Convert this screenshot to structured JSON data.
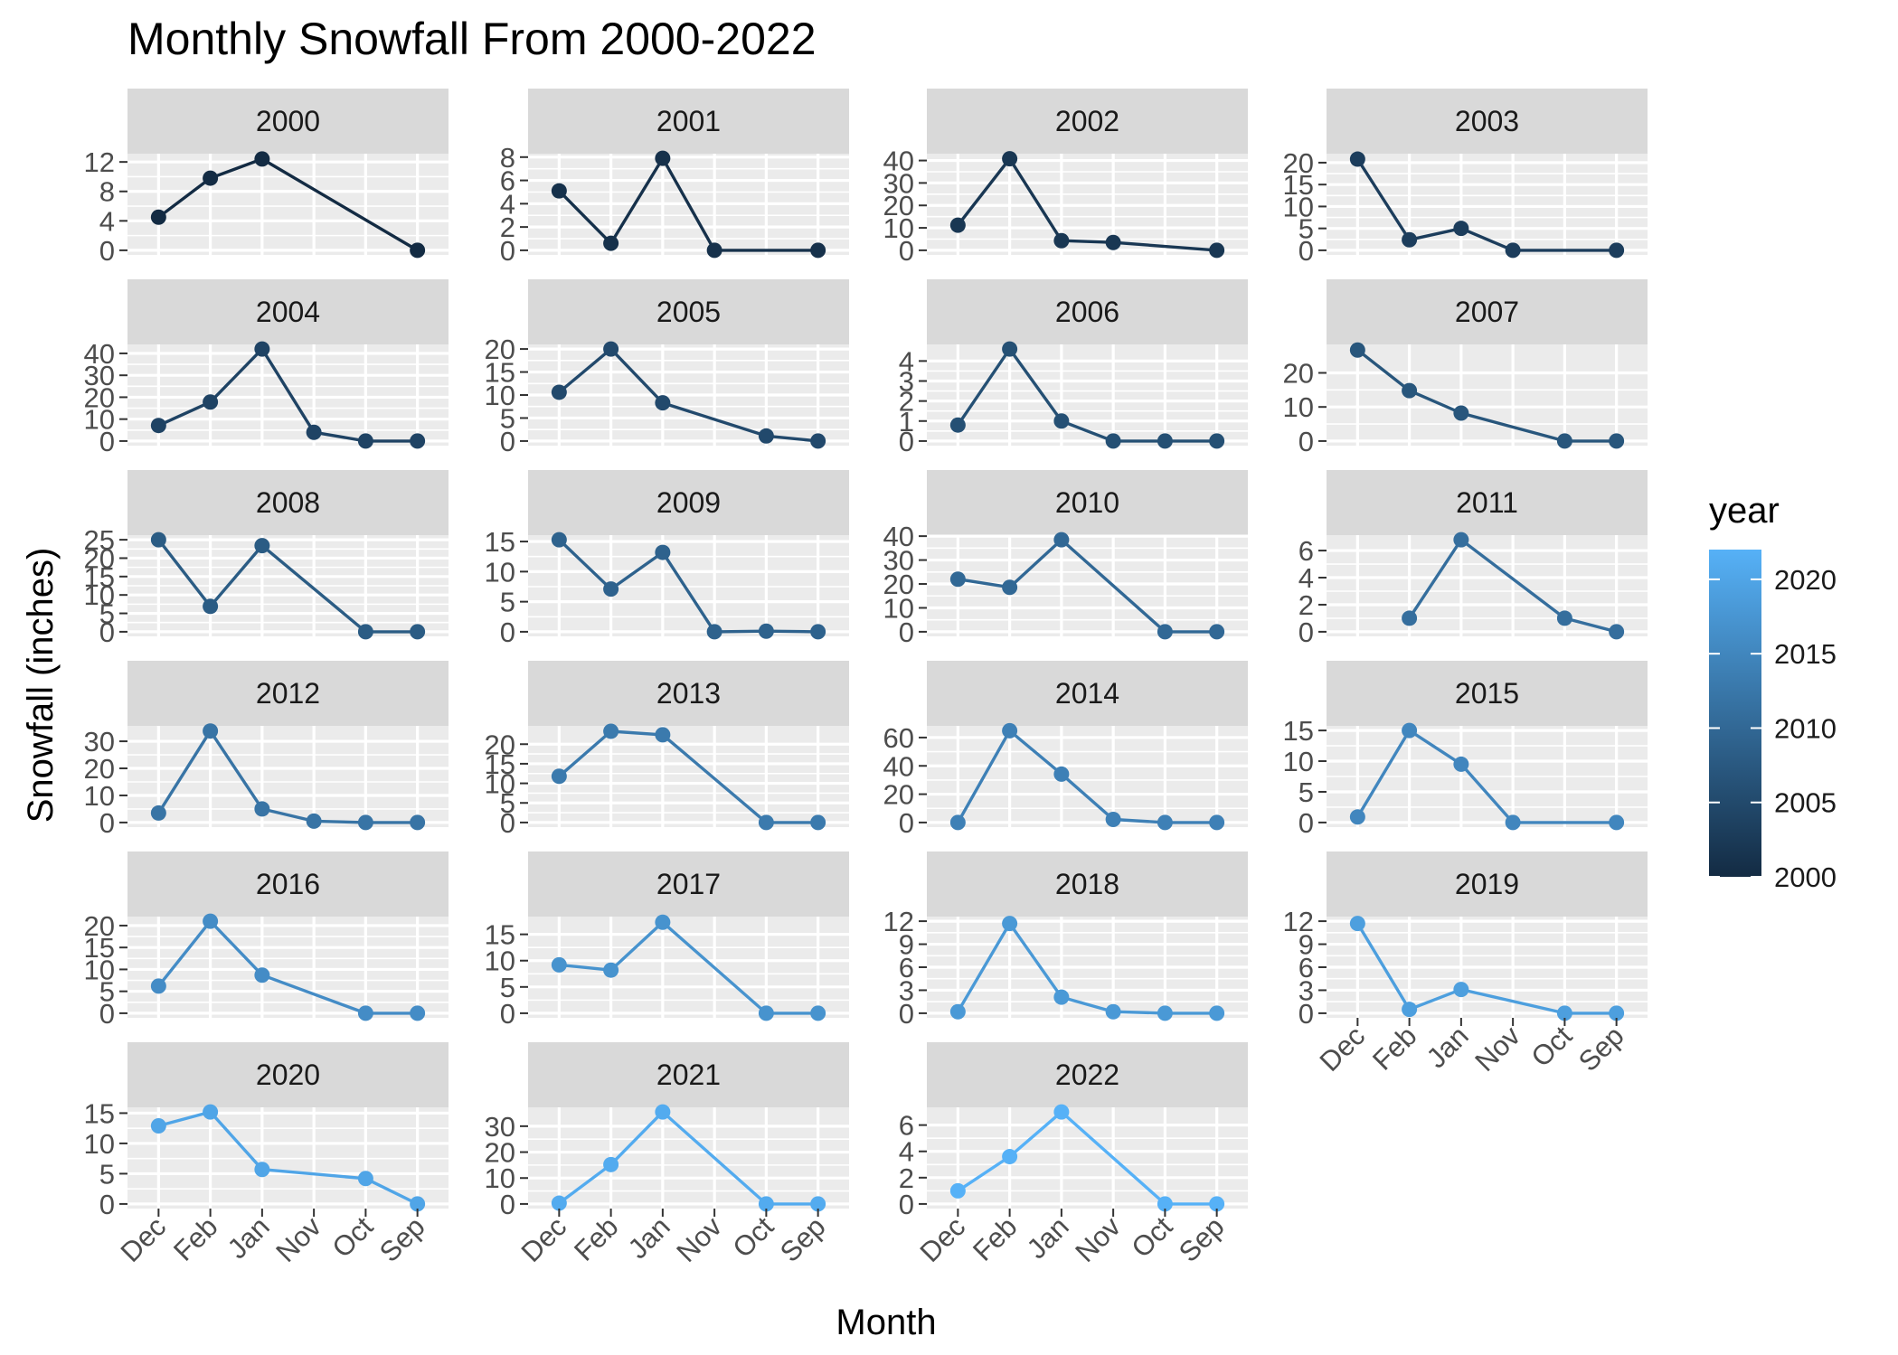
{
  "chart_data": {
    "type": "line",
    "title": "Monthly Snowfall From 2000-2022",
    "xlabel": "Month",
    "ylabel": "Snowfall (inches)",
    "categories": [
      "Dec",
      "Feb",
      "Jan",
      "Nov",
      "Oct",
      "Sep"
    ],
    "legend": {
      "title": "year",
      "position": "right",
      "range": [
        2000,
        2022
      ],
      "ticks": [
        2000,
        2005,
        2010,
        2015,
        2020
      ],
      "color_low": "#132b43",
      "color_high": "#56b1f7"
    },
    "panel_background": "#ebebeb",
    "strip_background": "#d9d9d9",
    "grid": true,
    "panels": [
      {
        "year": "2000",
        "ylim": [
          0,
          12.5
        ],
        "yticks": [
          0,
          4,
          8,
          12
        ],
        "values": [
          4.5,
          9.8,
          12.4,
          null,
          null,
          0.0
        ]
      },
      {
        "year": "2001",
        "ylim": [
          0,
          7.9
        ],
        "yticks": [
          0,
          2,
          4,
          6,
          8
        ],
        "values": [
          5.1,
          0.6,
          7.9,
          0.0,
          null,
          0.0
        ]
      },
      {
        "year": "2002",
        "ylim": [
          0,
          41
        ],
        "yticks": [
          0,
          10,
          20,
          30,
          40
        ],
        "values": [
          11.2,
          40.8,
          4.3,
          3.5,
          null,
          0.0
        ]
      },
      {
        "year": "2003",
        "ylim": [
          0,
          21
        ],
        "yticks": [
          0,
          5,
          10,
          15,
          20
        ],
        "values": [
          20.8,
          2.4,
          5.0,
          0.0,
          null,
          0.0
        ]
      },
      {
        "year": "2004",
        "ylim": [
          0,
          42
        ],
        "yticks": [
          0,
          10,
          20,
          30,
          40
        ],
        "values": [
          7.1,
          17.8,
          42.0,
          4.0,
          0.0,
          0.0
        ]
      },
      {
        "year": "2005",
        "ylim": [
          0,
          20
        ],
        "yticks": [
          0,
          5,
          10,
          15,
          20
        ],
        "values": [
          10.6,
          20.0,
          8.3,
          null,
          1.1,
          0.0
        ]
      },
      {
        "year": "2006",
        "ylim": [
          0,
          4.6
        ],
        "yticks": [
          0,
          1,
          2,
          3,
          4
        ],
        "values": [
          0.8,
          4.6,
          1.0,
          0.0,
          0.0,
          0.0
        ]
      },
      {
        "year": "2007",
        "ylim": [
          0,
          27
        ],
        "yticks": [
          0,
          10,
          20
        ],
        "values": [
          26.7,
          14.8,
          8.2,
          null,
          0.0,
          0.0
        ]
      },
      {
        "year": "2008",
        "ylim": [
          0,
          25
        ],
        "yticks": [
          0,
          5,
          10,
          15,
          20,
          25
        ],
        "values": [
          25.0,
          6.9,
          23.4,
          null,
          0.0,
          0.0
        ]
      },
      {
        "year": "2009",
        "ylim": [
          0,
          15.3
        ],
        "yticks": [
          0,
          5,
          10,
          15
        ],
        "values": [
          15.3,
          7.1,
          13.2,
          0.0,
          0.1,
          0.0
        ]
      },
      {
        "year": "2010",
        "ylim": [
          0,
          38.5
        ],
        "yticks": [
          0,
          10,
          20,
          30,
          40
        ],
        "values": [
          22.0,
          18.6,
          38.5,
          null,
          0.0,
          0.0
        ]
      },
      {
        "year": "2011",
        "ylim": [
          0,
          6.8
        ],
        "yticks": [
          0,
          2,
          4,
          6
        ],
        "values": [
          null,
          1.0,
          6.8,
          null,
          1.0,
          0.0
        ]
      },
      {
        "year": "2012",
        "ylim": [
          0,
          34
        ],
        "yticks": [
          0,
          10,
          20,
          30
        ],
        "values": [
          3.5,
          33.8,
          5.0,
          0.5,
          0.0,
          0.0
        ]
      },
      {
        "year": "2013",
        "ylim": [
          0,
          23.5
        ],
        "yticks": [
          0,
          5,
          10,
          15,
          20
        ],
        "values": [
          11.8,
          23.3,
          22.4,
          null,
          0.0,
          0.0
        ]
      },
      {
        "year": "2014",
        "ylim": [
          0,
          65
        ],
        "yticks": [
          0,
          20,
          40,
          60
        ],
        "values": [
          0.0,
          64.8,
          34.2,
          2.2,
          0.0,
          0.0
        ]
      },
      {
        "year": "2015",
        "ylim": [
          0,
          15
        ],
        "yticks": [
          0,
          5,
          10,
          15
        ],
        "values": [
          0.9,
          15.0,
          9.5,
          0.0,
          null,
          0.0
        ]
      },
      {
        "year": "2016",
        "ylim": [
          0,
          21
        ],
        "yticks": [
          0,
          5,
          10,
          15,
          20
        ],
        "values": [
          6.2,
          21.0,
          8.7,
          null,
          0.0,
          0.0
        ]
      },
      {
        "year": "2017",
        "ylim": [
          0,
          17.5
        ],
        "yticks": [
          0,
          5,
          10,
          15
        ],
        "values": [
          9.2,
          8.2,
          17.3,
          null,
          0.0,
          0.0
        ]
      },
      {
        "year": "2018",
        "ylim": [
          0,
          12
        ],
        "yticks": [
          0,
          3,
          6,
          9,
          12
        ],
        "values": [
          0.2,
          11.7,
          2.1,
          0.2,
          0.0,
          0.0
        ]
      },
      {
        "year": "2019",
        "ylim": [
          0,
          12
        ],
        "yticks": [
          0,
          3,
          6,
          9,
          12
        ],
        "values": [
          11.7,
          0.5,
          3.1,
          null,
          0.0,
          0.0
        ]
      },
      {
        "year": "2020",
        "ylim": [
          0,
          15.2
        ],
        "yticks": [
          0,
          5,
          10,
          15
        ],
        "values": [
          12.9,
          15.2,
          5.7,
          null,
          4.2,
          0.0
        ]
      },
      {
        "year": "2021",
        "ylim": [
          0,
          35.5
        ],
        "yticks": [
          0,
          10,
          20,
          30
        ],
        "values": [
          0.3,
          15.2,
          35.5,
          null,
          0.0,
          0.0
        ]
      },
      {
        "year": "2022",
        "ylim": [
          0,
          7.0
        ],
        "yticks": [
          0,
          2,
          4,
          6
        ],
        "values": [
          1.0,
          3.6,
          7.0,
          null,
          0.0,
          0.0
        ]
      }
    ]
  }
}
